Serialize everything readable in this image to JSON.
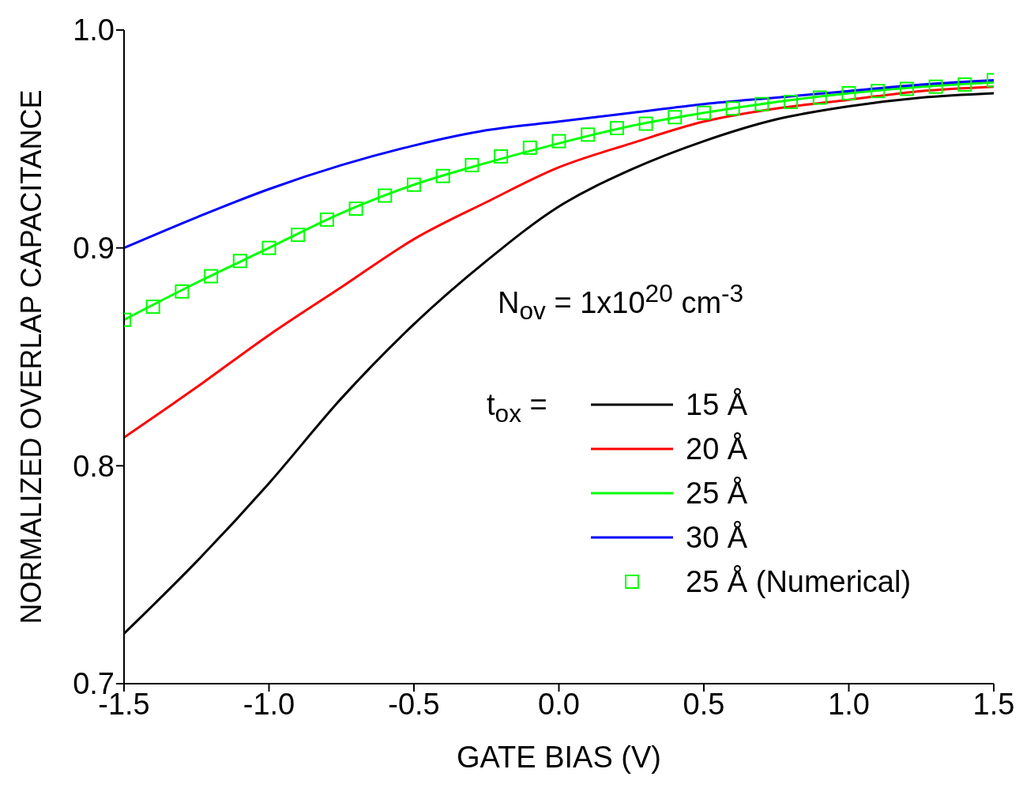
{
  "chart_data": {
    "type": "line",
    "xlabel": "GATE BIAS (V)",
    "ylabel": "NORMALIZED OVERLAP CAPACITANCE",
    "legend_title": "t$_{ox}$ =",
    "legend": "right",
    "annotations": [
      "N$_{ov}$ = 1x10$^{20}$ cm$^{-3}$"
    ],
    "x": [
      -1.5,
      -1.25,
      -1.0,
      -0.75,
      -0.5,
      -0.25,
      0,
      0.25,
      0.5,
      0.75,
      1.0,
      1.25,
      1.5
    ],
    "xlim": [
      -1.5,
      1.5
    ],
    "xticks": [
      {
        "value": -1.5,
        "label": "-1.5"
      },
      {
        "value": -1.0,
        "label": "-1.0"
      },
      {
        "value": -0.5,
        "label": "-0.5"
      },
      {
        "value": 0,
        "label": "0.0"
      },
      {
        "value": 0.5,
        "label": "0.5"
      },
      {
        "value": 1.0,
        "label": "1.0"
      },
      {
        "value": 1.5,
        "label": "1.5"
      }
    ],
    "ylim": [
      0.7,
      1.0
    ],
    "yticks": [
      0.7,
      0.8,
      0.9,
      {
        "value": 1.0,
        "label": "1.0"
      }
    ],
    "series": [
      {
        "name": "15 Å",
        "color": "#000000",
        "values": [
          0.723,
          0.756,
          0.792,
          0.831,
          0.865,
          0.894,
          0.919,
          0.936,
          0.949,
          0.959,
          0.965,
          0.969,
          0.971
        ]
      },
      {
        "name": "20 Å",
        "color": "#ff0000",
        "values": [
          0.813,
          0.836,
          0.86,
          0.882,
          0.904,
          0.921,
          0.937,
          0.948,
          0.958,
          0.964,
          0.968,
          0.972,
          0.974
        ]
      },
      {
        "name": "25 Å",
        "color": "#00ff00",
        "values": [
          0.867,
          0.884,
          0.9,
          0.916,
          0.929,
          0.939,
          0.948,
          0.956,
          0.962,
          0.967,
          0.971,
          0.974,
          0.976
        ]
      },
      {
        "name": "30 Å",
        "color": "#0000ff",
        "values": [
          0.9,
          0.914,
          0.927,
          0.938,
          0.947,
          0.954,
          0.958,
          0.962,
          0.966,
          0.969,
          0.972,
          0.975,
          0.977
        ]
      },
      {
        "name": "25 Å (Numerical)",
        "type": "scatter",
        "marker": "square",
        "color": "#00ff00",
        "x": [
          -1.5,
          -1.4,
          -1.3,
          -1.2,
          -1.1,
          -1.0,
          -0.9,
          -0.8,
          -0.7,
          -0.6,
          -0.5,
          -0.4,
          -0.3,
          -0.2,
          -0.1,
          0,
          0.1,
          0.2,
          0.3,
          0.4,
          0.5,
          0.6,
          0.7,
          0.8,
          0.9,
          1.0,
          1.1,
          1.2,
          1.3,
          1.4,
          1.5
        ],
        "values": [
          0.867,
          0.873,
          0.88,
          0.887,
          0.894,
          0.9,
          0.906,
          0.913,
          0.918,
          0.924,
          0.929,
          0.933,
          0.938,
          0.942,
          0.946,
          0.949,
          0.952,
          0.955,
          0.957,
          0.96,
          0.962,
          0.964,
          0.966,
          0.967,
          0.969,
          0.971,
          0.972,
          0.973,
          0.974,
          0.975,
          0.977
        ]
      }
    ]
  }
}
